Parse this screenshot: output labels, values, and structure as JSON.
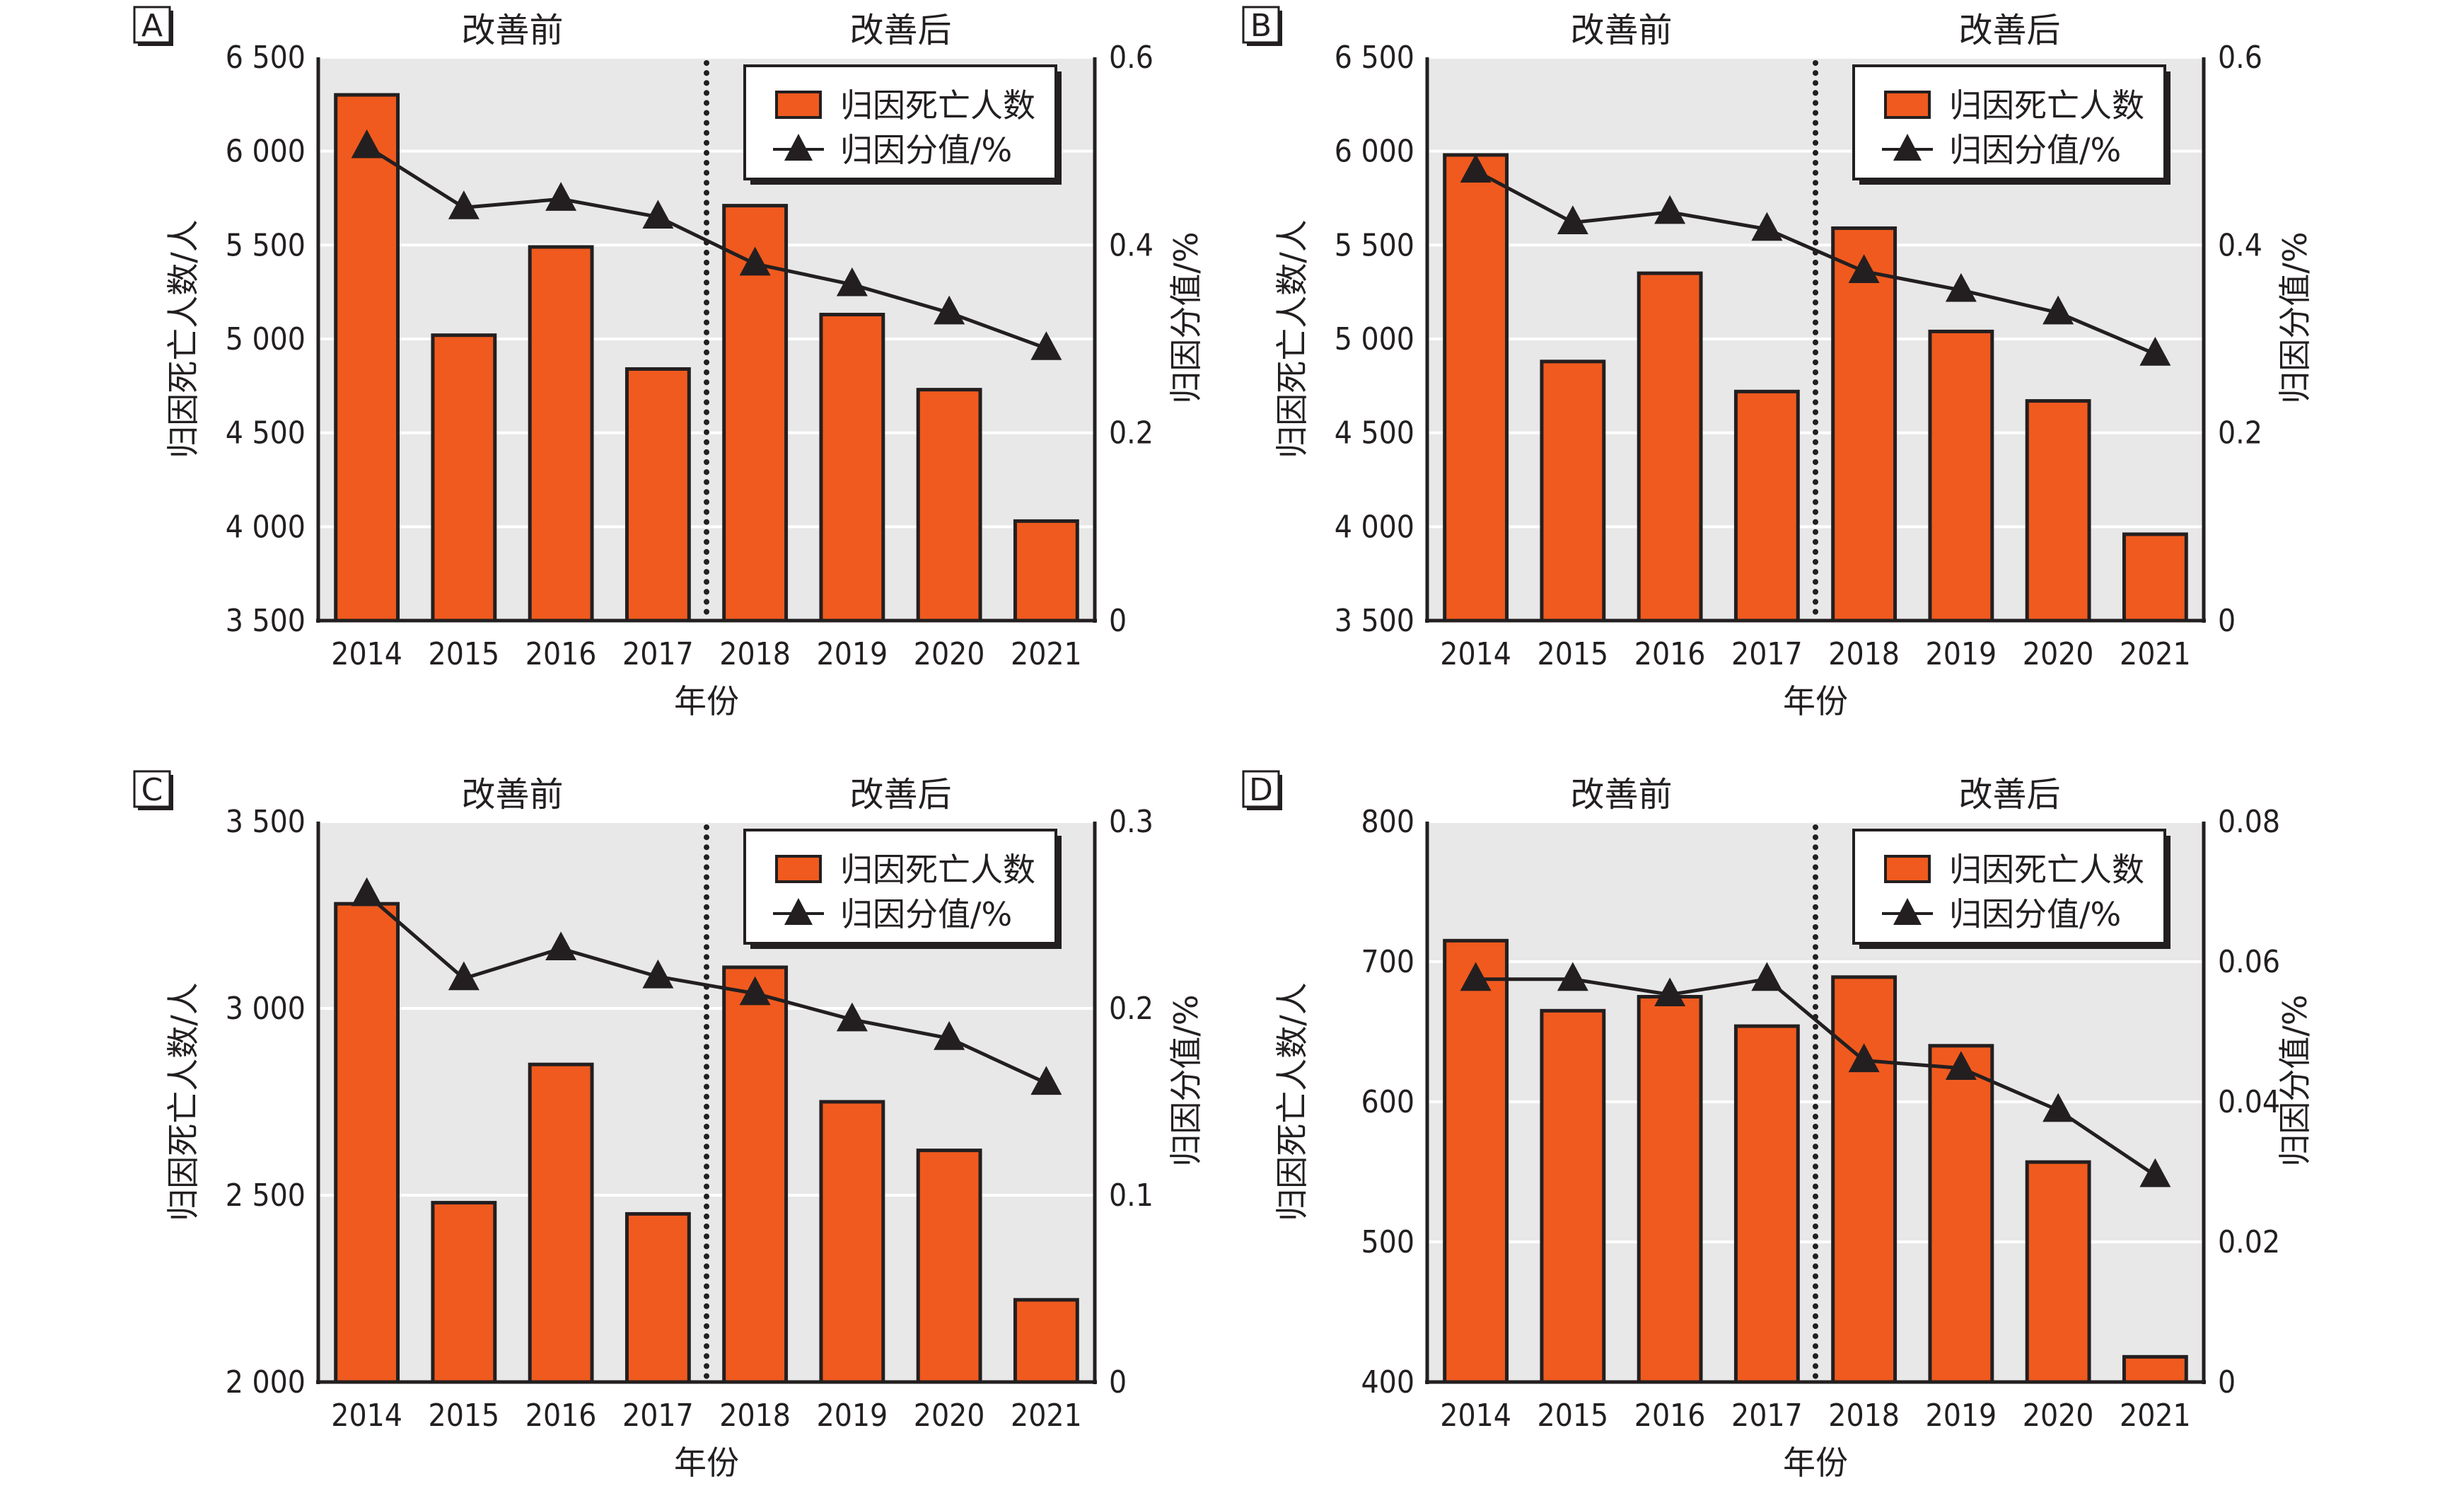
{
  "chart_data": [
    {
      "type": "bar",
      "panel": "A",
      "categories": [
        "2014",
        "2015",
        "2016",
        "2017",
        "2018",
        "2019",
        "2020",
        "2021"
      ],
      "period_labels": {
        "before": "改善前",
        "after": "改善后"
      },
      "divider_between": [
        "2017",
        "2018"
      ],
      "xlabel": "年份",
      "ylabel": "归因死亡人数/人",
      "y2label": "归因分值/%",
      "ylim": [
        3500,
        6500
      ],
      "yticks": [
        3500,
        4000,
        4500,
        5000,
        5500,
        6000,
        6500
      ],
      "ytick_labels": [
        "3 500",
        "4 000",
        "4 500",
        "5 000",
        "5 500",
        "6 000",
        "6 500"
      ],
      "y2lim": [
        0,
        0.6
      ],
      "y2ticks": [
        0,
        0.2,
        0.4,
        0.6
      ],
      "y2tick_labels": [
        "0",
        "0.2",
        "0.4",
        "0.6"
      ],
      "grid": true,
      "legend": {
        "position": "top-right",
        "entries": [
          "归因死亡人数",
          "归因分值/%"
        ]
      },
      "series": [
        {
          "name": "归因死亡人数",
          "type": "bar",
          "axis": "left",
          "color": "#f05a1e",
          "values": [
            6300,
            5020,
            5490,
            4840,
            5710,
            5130,
            4730,
            4030
          ]
        },
        {
          "name": "归因分值/%",
          "type": "line",
          "axis": "right",
          "marker": "triangle",
          "color": "#231f20",
          "values": [
            0.505,
            0.44,
            0.449,
            0.43,
            0.38,
            0.358,
            0.328,
            0.29
          ]
        }
      ]
    },
    {
      "type": "bar",
      "panel": "B",
      "categories": [
        "2014",
        "2015",
        "2016",
        "2017",
        "2018",
        "2019",
        "2020",
        "2021"
      ],
      "period_labels": {
        "before": "改善前",
        "after": "改善后"
      },
      "divider_between": [
        "2017",
        "2018"
      ],
      "xlabel": "年份",
      "ylabel": "归因死亡人数/人",
      "y2label": "归因分值/%",
      "ylim": [
        3500,
        6500
      ],
      "yticks": [
        3500,
        4000,
        4500,
        5000,
        5500,
        6000,
        6500
      ],
      "ytick_labels": [
        "3 500",
        "4 000",
        "4 500",
        "5 000",
        "5 500",
        "6 000",
        "6 500"
      ],
      "y2lim": [
        0,
        0.6
      ],
      "y2ticks": [
        0,
        0.2,
        0.4,
        0.6
      ],
      "y2tick_labels": [
        "0",
        "0.2",
        "0.4",
        "0.6"
      ],
      "grid": true,
      "legend": {
        "position": "top-right",
        "entries": [
          "归因死亡人数",
          "归因分值/%"
        ]
      },
      "series": [
        {
          "name": "归因死亡人数",
          "type": "bar",
          "axis": "left",
          "color": "#f05a1e",
          "values": [
            5980,
            4880,
            5350,
            4720,
            5590,
            5040,
            4670,
            3960
          ]
        },
        {
          "name": "归因分值/%",
          "type": "line",
          "axis": "right",
          "marker": "triangle",
          "color": "#231f20",
          "values": [
            0.479,
            0.424,
            0.435,
            0.417,
            0.372,
            0.352,
            0.328,
            0.284
          ]
        }
      ]
    },
    {
      "type": "bar",
      "panel": "C",
      "categories": [
        "2014",
        "2015",
        "2016",
        "2017",
        "2018",
        "2019",
        "2020",
        "2021"
      ],
      "period_labels": {
        "before": "改善前",
        "after": "改善后"
      },
      "divider_between": [
        "2017",
        "2018"
      ],
      "xlabel": "年份",
      "ylabel": "归因死亡人数/人",
      "y2label": "归因分值/%",
      "ylim": [
        2000,
        3500
      ],
      "yticks": [
        2000,
        2500,
        3000,
        3500
      ],
      "ytick_labels": [
        "2 000",
        "2 500",
        "3 000",
        "3 500"
      ],
      "y2lim": [
        0,
        0.3
      ],
      "y2ticks": [
        0,
        0.1,
        0.2,
        0.3
      ],
      "y2tick_labels": [
        "0",
        "0.1",
        "0.2",
        "0.3"
      ],
      "grid": true,
      "legend": {
        "position": "top-right",
        "entries": [
          "归因死亡人数",
          "归因分值/%"
        ]
      },
      "series": [
        {
          "name": "归因死亡人数",
          "type": "bar",
          "axis": "left",
          "color": "#f05a1e",
          "values": [
            3280,
            2480,
            2850,
            2450,
            3110,
            2750,
            2620,
            2220
          ]
        },
        {
          "name": "归因分值/%",
          "type": "line",
          "axis": "right",
          "marker": "triangle",
          "color": "#231f20",
          "values": [
            0.261,
            0.216,
            0.232,
            0.217,
            0.208,
            0.194,
            0.184,
            0.16
          ]
        }
      ]
    },
    {
      "type": "bar",
      "panel": "D",
      "categories": [
        "2014",
        "2015",
        "2016",
        "2017",
        "2018",
        "2019",
        "2020",
        "2021"
      ],
      "period_labels": {
        "before": "改善前",
        "after": "改善后"
      },
      "divider_between": [
        "2017",
        "2018"
      ],
      "xlabel": "年份",
      "ylabel": "归因死亡人数/人",
      "y2label": "归因分值/%",
      "ylim": [
        400,
        800
      ],
      "yticks": [
        400,
        500,
        600,
        700,
        800
      ],
      "ytick_labels": [
        "400",
        "500",
        "600",
        "700",
        "800"
      ],
      "y2lim": [
        0,
        0.08
      ],
      "y2ticks": [
        0,
        0.02,
        0.04,
        0.06,
        0.08
      ],
      "y2tick_labels": [
        "0",
        "0.02",
        "0.04",
        "0.06",
        "0.08"
      ],
      "grid": true,
      "legend": {
        "position": "top-right",
        "entries": [
          "归因死亡人数",
          "归因分值/%"
        ]
      },
      "series": [
        {
          "name": "归因死亡人数",
          "type": "bar",
          "axis": "left",
          "color": "#f05a1e",
          "values": [
            715,
            665,
            675,
            654,
            689,
            640,
            557,
            418
          ]
        },
        {
          "name": "归因分值/%",
          "type": "line",
          "axis": "right",
          "marker": "triangle",
          "color": "#231f20",
          "values": [
            0.0575,
            0.0575,
            0.0553,
            0.0575,
            0.0459,
            0.0448,
            0.0388,
            0.0295
          ]
        }
      ]
    }
  ],
  "colors": {
    "bar_fill": "#f05a1e",
    "outline": "#231f20",
    "plot_background": "#e8e8e8",
    "gridline": "#ffffff"
  }
}
